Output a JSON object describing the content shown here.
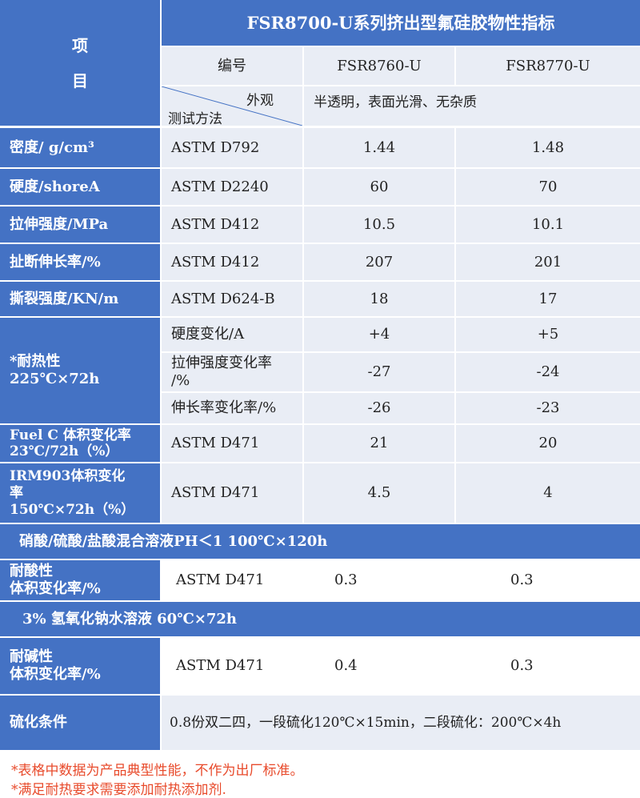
{
  "header": {
    "item_label_top": "项",
    "item_label_bottom": "目",
    "title": "FSR8700-U系列挤出型氟硅胶物性指标",
    "col_code": "编号",
    "col_a": "FSR8760-U",
    "col_b": "FSR8770-U",
    "appearance_label": "外观",
    "test_method_label": "测试方法",
    "appearance_value": "半透明，表面光滑、无杂质"
  },
  "rows": {
    "density": {
      "label": "密度/ g/cm³",
      "method": "ASTM D792",
      "a": "1.44",
      "b": "1.48"
    },
    "hardness": {
      "label": "硬度/shoreA",
      "method": "ASTM D2240",
      "a": "60",
      "b": "70"
    },
    "tensile": {
      "label": "拉伸强度/MPa",
      "method": "ASTM D412",
      "a": "10.5",
      "b": "10.1"
    },
    "elongation": {
      "label": "扯断伸长率/%",
      "method": "ASTM D412",
      "a": "207",
      "b": "201"
    },
    "tear": {
      "label": "撕裂强度/KN/m",
      "method": "ASTM D624-B",
      "a": "18",
      "b": "17"
    },
    "heat": {
      "label_line1": "*耐热性",
      "label_line2": "225℃×72h",
      "sub1": {
        "method": "硬度变化/A",
        "a": "+4",
        "b": "+5"
      },
      "sub2": {
        "method_line1": "拉伸强度变化率",
        "method_line2": "/%",
        "a": "-27",
        "b": "-24"
      },
      "sub3": {
        "method": "伸长率变化率/%",
        "a": "-26",
        "b": "-23"
      }
    },
    "fuelc": {
      "label_line1": "Fuel C 体积变化率",
      "label_line2": "23℃/72h（%）",
      "method": "ASTM D471",
      "a": "21",
      "b": "20"
    },
    "irm": {
      "label_line1": "IRM903体积变化",
      "label_line2": "率",
      "label_line3": "150℃×72h（%）",
      "method": "ASTM D471",
      "a": "4.5",
      "b": "4"
    }
  },
  "acid": {
    "banner": "硝酸/硫酸/盐酸混合溶液PH＜1   100℃×120h",
    "label_line1": "耐酸性",
    "label_line2": "体积变化率/%",
    "method": "ASTM D471",
    "a": "0.3",
    "b": "0.3"
  },
  "alkali": {
    "banner": "3% 氢氧化钠水溶液    60℃×72h",
    "label_line1": "耐碱性",
    "label_line2": "体积变化率/%",
    "method": "ASTM D471",
    "a": "0.4",
    "b": "0.3"
  },
  "cure": {
    "label": "硫化条件",
    "value": "0.8份双二四，一段硫化120℃×15min，二段硫化：200℃×4h"
  },
  "notes": {
    "note1": "*表格中数据为产品典型性能，不作为出厂标准。",
    "note2": "*满足耐热要求需要添加耐热添加剂."
  },
  "colors": {
    "header_blue": "#4472c4",
    "row_light": "#e9edf5",
    "note_red": "#e84b2c"
  }
}
